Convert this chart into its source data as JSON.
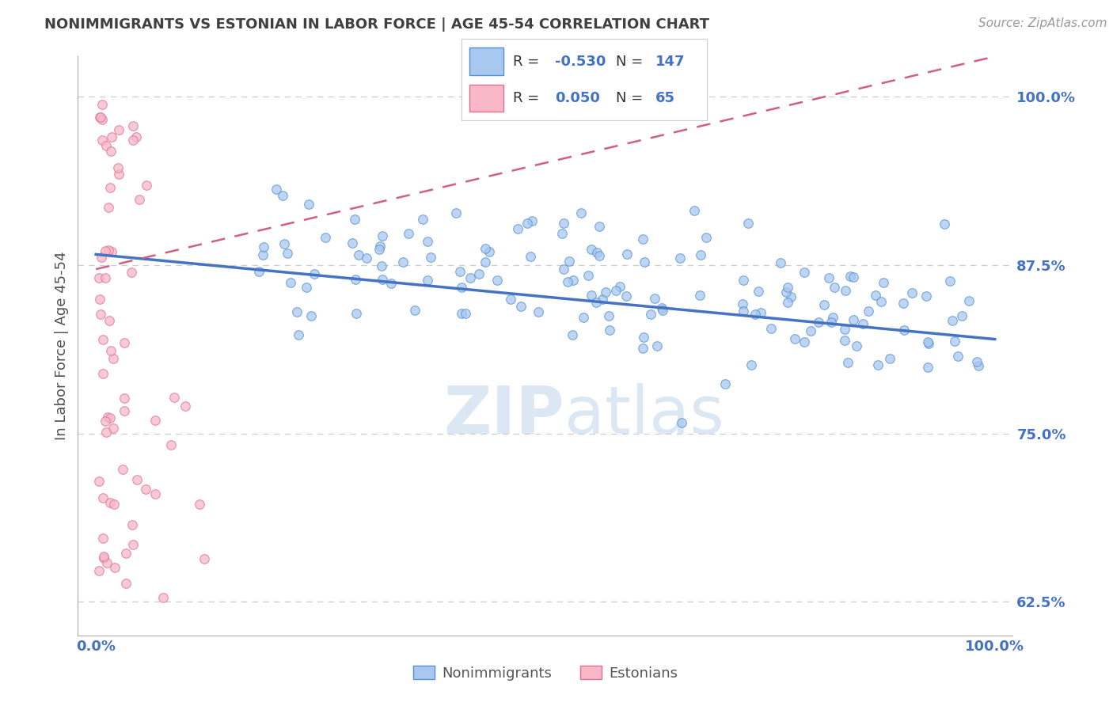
{
  "title": "NONIMMIGRANTS VS ESTONIAN IN LABOR FORCE | AGE 45-54 CORRELATION CHART",
  "source": "Source: ZipAtlas.com",
  "ylabel": "In Labor Force | Age 45-54",
  "watermark": "ZIPatlas",
  "xlim": [
    0.0,
    1.0
  ],
  "ylim": [
    0.6,
    1.03
  ],
  "yticks": [
    0.625,
    0.75,
    0.875,
    1.0
  ],
  "ytick_labels": [
    "62.5%",
    "75.0%",
    "87.5%",
    "100.0%"
  ],
  "xticks": [
    0.0,
    1.0
  ],
  "xtick_labels": [
    "0.0%",
    "100.0%"
  ],
  "blue_color": "#A8C8F0",
  "blue_edge_color": "#5590D0",
  "blue_line_color": "#4472C4",
  "pink_color": "#F8B8C8",
  "pink_edge_color": "#E07090",
  "pink_line_color": "#D06080",
  "grid_color": "#C8C8C8",
  "title_color": "#404040",
  "label_color": "#4472C4",
  "background_color": "#FFFFFF",
  "legend_box_color": "#CCCCCC",
  "watermark_color": "#C5D8EE",
  "blue_r": "-0.530",
  "blue_n": "147",
  "pink_r": "0.050",
  "pink_n": "65",
  "blue_trend_x0": 0.0,
  "blue_trend_y0": 0.883,
  "blue_trend_x1": 1.0,
  "blue_trend_y1": 0.82,
  "pink_trend_x0": 0.0,
  "pink_trend_y0": 0.872,
  "pink_trend_x1": 1.0,
  "pink_trend_y1": 1.03
}
